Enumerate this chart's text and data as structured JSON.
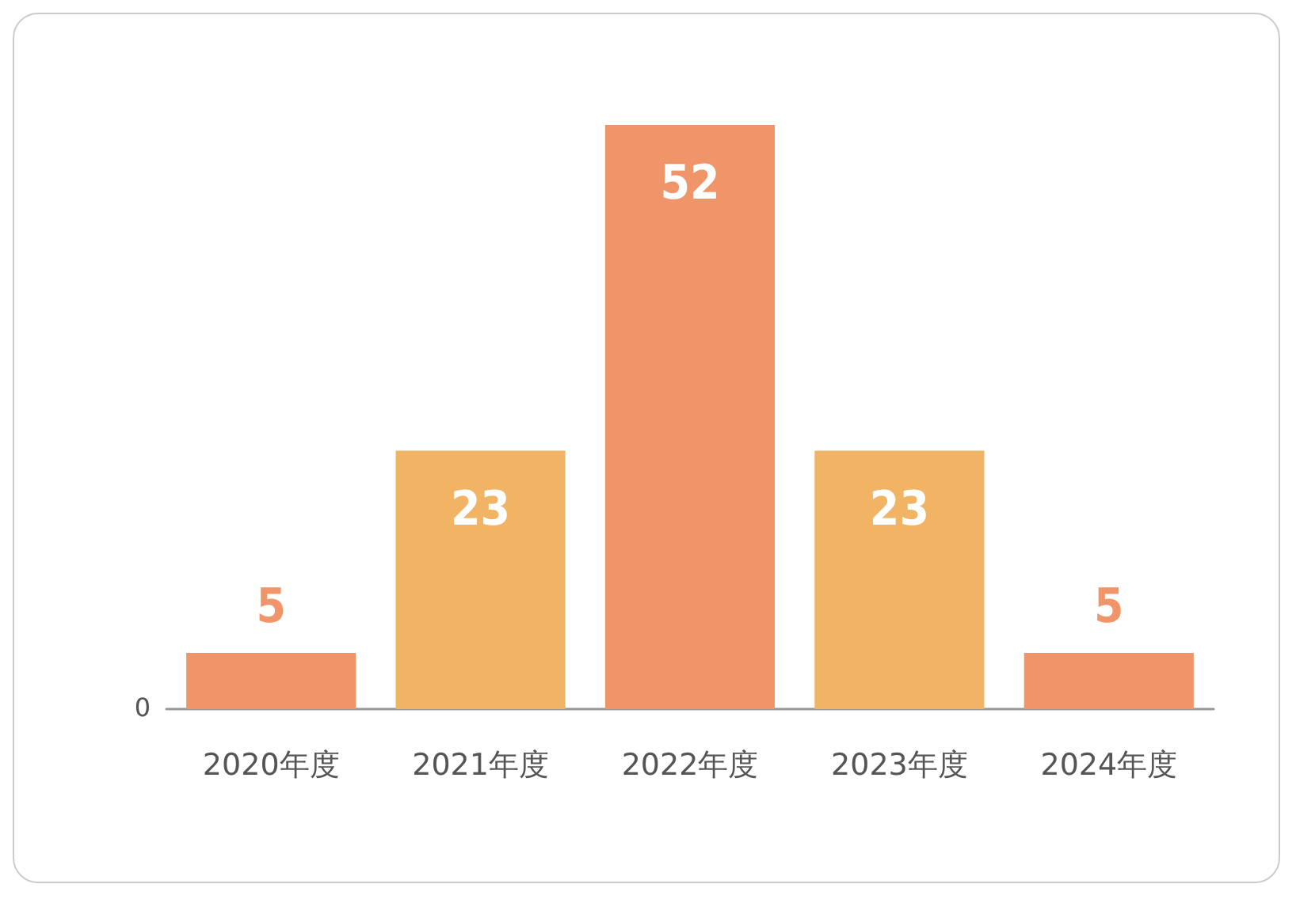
{
  "chart_data": {
    "type": "bar",
    "categories": [
      "2020年度",
      "2021年度",
      "2022年度",
      "2023年度",
      "2024年度"
    ],
    "values": [
      5,
      23,
      52,
      23,
      5
    ],
    "colors": [
      "#f0956a",
      "#f0b464",
      "#f0956a",
      "#f0b464",
      "#f0956a"
    ],
    "annotations": [
      "0"
    ],
    "grid": false,
    "data_labels": true
  }
}
